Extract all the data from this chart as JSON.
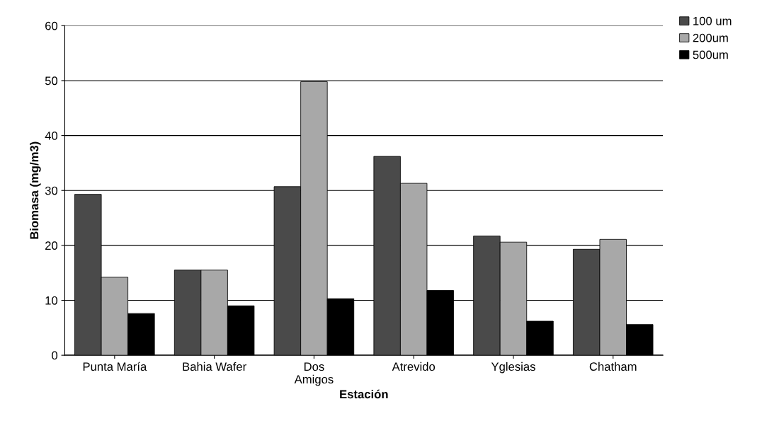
{
  "chart_data": {
    "type": "bar",
    "xlabel": "Estación",
    "ylabel": "Biomasa (mg/m3)",
    "categories": [
      "Punta María",
      "Bahia Wafer",
      "Dos Amigos",
      "Atrevido",
      "Yglesias",
      "Chatham"
    ],
    "series": [
      {
        "name": "100 um",
        "color": "#4a4a4a",
        "values": [
          29.3,
          15.5,
          30.7,
          36.2,
          21.7,
          19.3
        ]
      },
      {
        "name": "200um",
        "color": "#a8a8a8",
        "values": [
          14.2,
          15.5,
          49.8,
          31.3,
          20.6,
          21.1
        ]
      },
      {
        "name": "500um",
        "color": "#000000",
        "values": [
          7.6,
          9.0,
          10.3,
          11.8,
          6.2,
          5.6
        ]
      }
    ],
    "ylim": [
      0,
      60
    ],
    "yticks": [
      0,
      10,
      20,
      30,
      40,
      50,
      60
    ],
    "grid": "y",
    "legend": "top right"
  }
}
